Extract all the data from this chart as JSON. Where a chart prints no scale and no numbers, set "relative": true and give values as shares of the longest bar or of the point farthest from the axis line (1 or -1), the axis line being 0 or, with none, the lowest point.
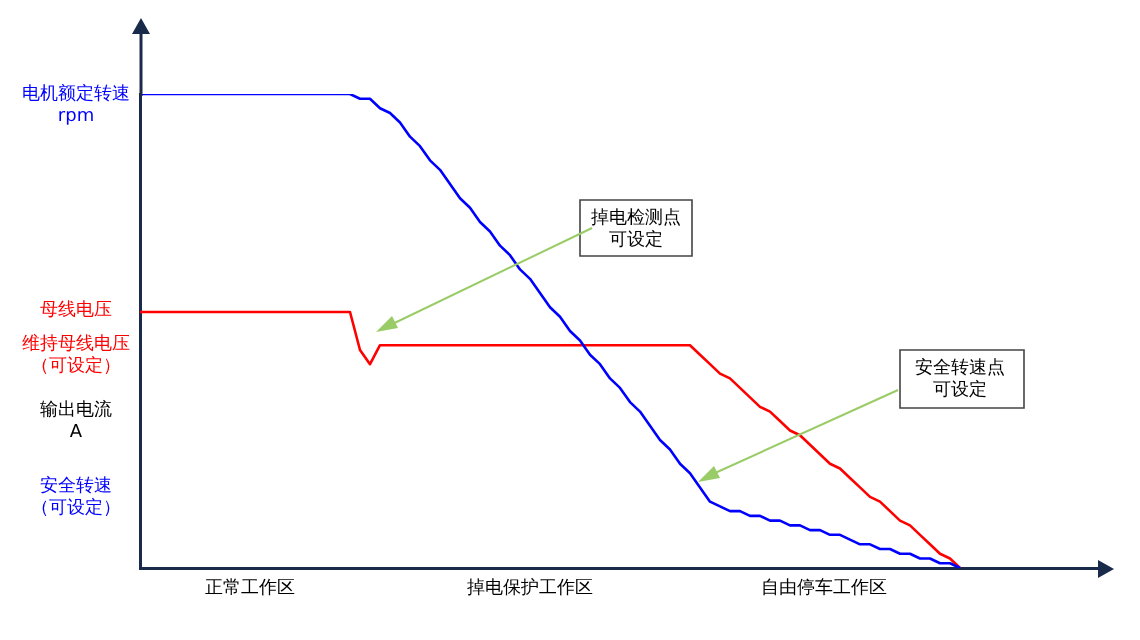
{
  "chart_data": {
    "type": "line",
    "relative": true,
    "legend": false,
    "grid": false,
    "marker": "none",
    "line_style": "solid",
    "ylabel": "输出电流\nA",
    "categories": [
      null,
      null,
      null,
      null,
      null,
      null,
      null,
      null,
      null,
      null,
      null,
      null,
      null,
      null,
      null,
      null,
      null,
      null,
      null,
      null,
      null,
      null,
      null,
      null,
      null,
      null,
      null,
      null,
      null,
      null,
      null,
      null,
      null,
      null,
      null,
      null,
      null,
      null,
      null,
      null,
      null,
      null,
      null,
      null,
      null,
      null,
      null,
      null,
      null,
      null,
      null,
      null,
      null,
      null,
      null,
      null,
      null,
      null,
      null,
      null,
      null,
      null,
      null,
      null,
      null,
      null,
      null,
      null,
      null,
      null,
      null,
      null,
      null,
      null,
      null,
      null,
      null,
      null,
      null,
      null,
      null,
      null,
      null,
      null,
      null,
      null,
      null,
      null,
      null,
      null,
      null,
      null,
      null,
      null,
      null,
      null,
      null
    ],
    "series": [
      {
        "color": "#0000ff",
        "values": [
          1,
          1,
          1,
          1,
          1,
          1,
          1,
          1,
          1,
          1,
          1,
          1,
          1,
          1,
          1,
          1,
          1,
          1,
          1,
          1,
          1,
          1,
          0.99,
          0.99,
          0.97,
          0.96,
          0.94,
          0.91,
          0.89,
          0.86,
          0.84,
          0.81,
          0.78,
          0.76,
          0.73,
          0.71,
          0.68,
          0.66,
          0.63,
          0.61,
          0.58,
          0.55,
          0.53,
          0.5,
          0.48,
          0.45,
          0.43,
          0.4,
          0.38,
          0.35,
          0.33,
          0.3,
          0.27,
          0.25,
          0.22,
          0.2,
          0.17,
          0.14,
          0.13,
          0.12,
          0.12,
          0.11,
          0.11,
          0.1,
          0.1,
          0.09,
          0.09,
          0.08,
          0.08,
          0.07,
          0.07,
          0.06,
          0.05,
          0.05,
          0.04,
          0.04,
          0.03,
          0.03,
          0.02,
          0.02,
          0.01,
          0.01,
          0,
          null,
          null,
          null,
          null,
          null,
          null,
          null,
          null,
          null,
          null,
          null,
          null,
          null,
          null
        ]
      },
      {
        "color": "#ff0000",
        "values": [
          0.54,
          0.54,
          0.54,
          0.54,
          0.54,
          0.54,
          0.54,
          0.54,
          0.54,
          0.54,
          0.54,
          0.54,
          0.54,
          0.54,
          0.54,
          0.54,
          0.54,
          0.54,
          0.54,
          0.54,
          0.54,
          0.54,
          0.46,
          0.43,
          0.47,
          0.47,
          0.47,
          0.47,
          0.47,
          0.47,
          0.47,
          0.47,
          0.47,
          0.47,
          0.47,
          0.47,
          0.47,
          0.47,
          0.47,
          0.47,
          0.47,
          0.47,
          0.47,
          0.47,
          0.47,
          0.47,
          0.47,
          0.47,
          0.47,
          0.47,
          0.47,
          0.47,
          0.47,
          0.47,
          0.47,
          0.47,
          0.45,
          0.43,
          0.41,
          0.4,
          0.38,
          0.36,
          0.34,
          0.33,
          0.31,
          0.29,
          0.28,
          0.26,
          0.24,
          0.22,
          0.21,
          0.19,
          0.17,
          0.15,
          0.14,
          0.12,
          0.1,
          0.09,
          0.07,
          0.05,
          0.03,
          0.02,
          0,
          null,
          null,
          null,
          null,
          null,
          null,
          null,
          null,
          null,
          null,
          null,
          null,
          null,
          null
        ]
      }
    ],
    "annotations": [
      "电机额定转速",
      "rpm",
      "母线电压",
      "维持母线电压",
      "（可设定）",
      "安全转速",
      "（可设定）",
      "正常工作区",
      "掉电保护工作区",
      "自由停车工作区",
      "掉电检测点",
      "可设定",
      "安全转速点",
      "可设定"
    ]
  }
}
